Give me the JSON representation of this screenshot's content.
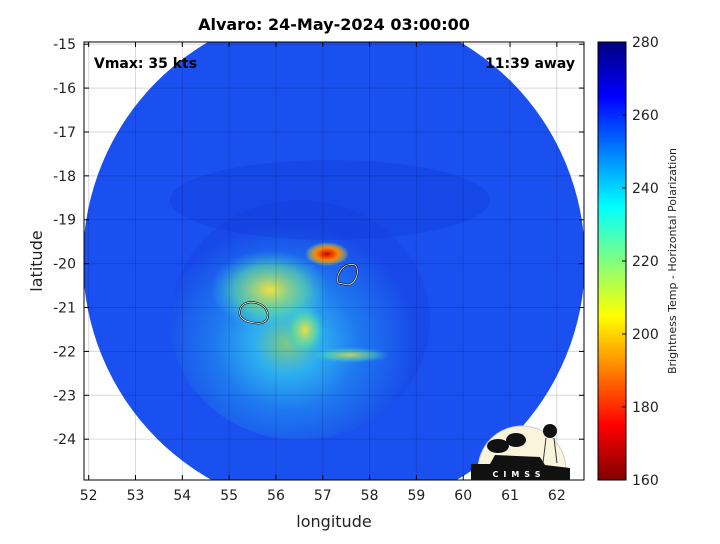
{
  "title": "Alvaro: 24-May-2024 03:00:00",
  "annotations": {
    "vmax": "Vmax: 35 kts",
    "time_away": "11:39 away"
  },
  "axes": {
    "xlabel": "longitude",
    "ylabel": "latitude",
    "xlim": [
      51.9,
      62.58
    ],
    "ylim": [
      -24.93,
      -14.95
    ],
    "xticks": [
      "52",
      "53",
      "54",
      "55",
      "56",
      "57",
      "58",
      "59",
      "60",
      "61",
      "62"
    ],
    "yticks": [
      "-15",
      "-16",
      "-17",
      "-18",
      "-19",
      "-20",
      "-21",
      "-22",
      "-23",
      "-24"
    ],
    "grid": true
  },
  "colorbar": {
    "label": "Brightness Temp - Horizontal Polarization",
    "range": [
      160,
      280
    ],
    "ticks": [
      "280",
      "260",
      "240",
      "220",
      "200",
      "180",
      "160"
    ],
    "colormap": "jet"
  },
  "features": {
    "cold_core_center": [
      57.1,
      -19.85
    ],
    "contours": [
      [
        57.6,
        -20.3
      ],
      [
        55.6,
        -21.15
      ]
    ]
  },
  "logo": {
    "text": "CIMSS"
  }
}
